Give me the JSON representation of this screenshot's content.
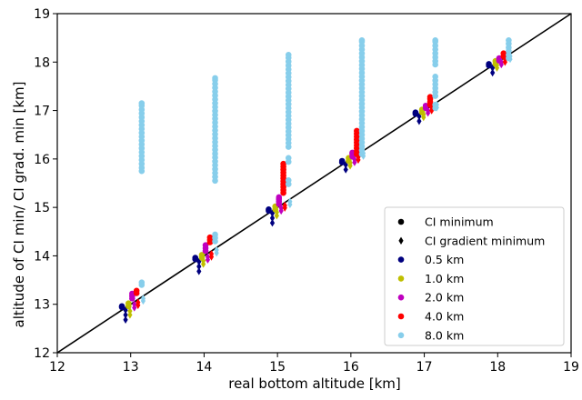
{
  "chart_data": {
    "type": "scatter",
    "xlabel": "real bottom altitude [km]",
    "ylabel": "altitude of CI min/ CI grad. min [km]",
    "xlim": [
      12,
      19
    ],
    "ylim": [
      12,
      19
    ],
    "xticks": [
      "12",
      "13",
      "14",
      "15",
      "16",
      "17",
      "18",
      "19"
    ],
    "yticks": [
      "12",
      "13",
      "14",
      "15",
      "16",
      "17",
      "18",
      "19"
    ],
    "grid": false,
    "legend_position": "lower-right",
    "reference_line": {
      "x": [
        12,
        19
      ],
      "y": [
        12,
        19
      ],
      "color": "#000000"
    },
    "markers": [
      {
        "name": "CI minimum",
        "shape": "circle",
        "color": "#000000"
      },
      {
        "name": "CI gradient minimum",
        "shape": "diamond",
        "color": "#000000"
      }
    ],
    "series": [
      {
        "name": "0.5 km",
        "color": "#00007f",
        "offset": -0.12,
        "ci_min": [
          {
            "x": 12.88,
            "y": [
              12.94,
              12.96
            ]
          },
          {
            "x": 13.88,
            "y": [
              13.93,
              13.96
            ]
          },
          {
            "x": 14.88,
            "y": [
              14.93,
              14.96
            ]
          },
          {
            "x": 15.88,
            "y": [
              15.93,
              15.96
            ]
          },
          {
            "x": 16.88,
            "y": [
              16.93,
              16.96
            ]
          },
          {
            "x": 17.88,
            "y": [
              17.93,
              17.96
            ]
          }
        ],
        "ci_grad_min": [
          {
            "x": 12.93,
            "y": [
              12.68,
              12.78,
              12.88
            ]
          },
          {
            "x": 13.93,
            "y": [
              13.68,
              13.78,
              13.88
            ]
          },
          {
            "x": 14.93,
            "y": [
              14.68,
              14.78,
              14.88
            ]
          },
          {
            "x": 15.93,
            "y": [
              15.78,
              15.88
            ]
          },
          {
            "x": 16.93,
            "y": [
              16.78,
              16.88
            ]
          },
          {
            "x": 17.93,
            "y": [
              17.78,
              17.88
            ]
          }
        ]
      },
      {
        "name": "1.0 km",
        "color": "#bfbf00",
        "offset": -0.03,
        "ci_min": [
          {
            "x": 12.97,
            "y": [
              12.96,
              13.02
            ]
          },
          {
            "x": 13.97,
            "y": [
              13.96,
              14.02
            ]
          },
          {
            "x": 14.97,
            "y": [
              14.96,
              15.02
            ]
          },
          {
            "x": 15.97,
            "y": [
              15.96,
              16.02
            ]
          },
          {
            "x": 16.97,
            "y": [
              16.96,
              17.02
            ]
          },
          {
            "x": 17.97,
            "y": [
              17.96,
              18.02
            ]
          }
        ],
        "ci_grad_min": [
          {
            "x": 12.99,
            "y": [
              12.78,
              12.86
            ]
          },
          {
            "x": 13.99,
            "y": [
              13.83,
              13.9
            ]
          },
          {
            "x": 14.99,
            "y": [
              14.83,
              14.9
            ]
          },
          {
            "x": 15.99,
            "y": [
              15.86,
              15.92
            ]
          },
          {
            "x": 16.99,
            "y": [
              16.86,
              16.92
            ]
          },
          {
            "x": 17.99,
            "y": [
              17.88,
              17.94
            ]
          }
        ]
      },
      {
        "name": "2.0 km",
        "color": "#bf00bf",
        "offset": 0.0,
        "ci_min": [
          {
            "x": 13.02,
            "y": [
              13.12,
              13.17,
              13.22
            ]
          },
          {
            "x": 14.02,
            "y": [
              14.1,
              14.16,
              14.22
            ]
          },
          {
            "x": 15.02,
            "y": [
              15.07,
              15.12,
              15.17,
              15.21
            ]
          },
          {
            "x": 16.02,
            "y": [
              16.05,
              16.1,
              16.13
            ]
          },
          {
            "x": 17.02,
            "y": [
              17.05,
              17.1
            ]
          },
          {
            "x": 18.02,
            "y": [
              18.03,
              18.08
            ]
          }
        ],
        "ci_grad_min": [
          {
            "x": 13.05,
            "y": [
              12.93,
              13.0
            ]
          },
          {
            "x": 14.05,
            "y": [
              13.92,
              13.98
            ]
          },
          {
            "x": 15.05,
            "y": [
              14.93,
              14.99
            ]
          },
          {
            "x": 16.05,
            "y": [
              15.93,
              15.99
            ]
          },
          {
            "x": 17.05,
            "y": [
              16.95,
              17.0
            ]
          },
          {
            "x": 18.05,
            "y": [
              17.95,
              18.0
            ]
          }
        ]
      },
      {
        "name": "4.0 km",
        "color": "#ff0000",
        "offset": 0.08,
        "ci_min": [
          {
            "x": 13.08,
            "y": [
              13.23,
              13.28
            ]
          },
          {
            "x": 14.08,
            "y": [
              14.28,
              14.33,
              14.38
            ]
          },
          {
            "x": 15.08,
            "y": [
              15.3,
              15.36,
              15.42,
              15.48,
              15.54,
              15.6,
              15.66,
              15.72,
              15.78,
              15.84,
              15.9
            ]
          },
          {
            "x": 16.08,
            "y": [
              16.1,
              16.16,
              16.22,
              16.28,
              16.34,
              16.4,
              16.46,
              16.52,
              16.58
            ]
          },
          {
            "x": 17.08,
            "y": [
              17.12,
              17.18,
              17.24,
              17.28
            ]
          },
          {
            "x": 18.08,
            "y": [
              18.12,
              18.18
            ]
          }
        ],
        "ci_grad_min": [
          {
            "x": 13.1,
            "y": [
              12.98,
              13.04
            ]
          },
          {
            "x": 14.1,
            "y": [
              13.98,
              14.04
            ]
          },
          {
            "x": 15.1,
            "y": [
              14.99,
              15.04
            ]
          },
          {
            "x": 16.1,
            "y": [
              15.98,
              16.04
            ]
          },
          {
            "x": 17.1,
            "y": [
              17.0,
              17.06
            ]
          },
          {
            "x": 18.1,
            "y": [
              18.0,
              18.06
            ]
          }
        ]
      },
      {
        "name": "8.0 km",
        "color": "#87ceeb",
        "offset": 0.15,
        "ci_min": [
          {
            "x": 13.15,
            "y": [
              13.4,
              13.45,
              15.75,
              15.82,
              15.9,
              15.98,
              16.06,
              16.14,
              16.22,
              16.3,
              16.38,
              16.46,
              16.54,
              16.62,
              16.7,
              16.78,
              16.86,
              16.94,
              17.02,
              17.1,
              17.15
            ]
          },
          {
            "x": 14.15,
            "y": [
              14.3,
              14.37,
              14.44,
              15.55,
              15.63,
              15.71,
              15.79,
              15.87,
              15.95,
              16.03,
              16.11,
              16.19,
              16.27,
              16.35,
              16.43,
              16.51,
              16.59,
              16.67,
              16.75,
              16.83,
              16.91,
              16.99,
              17.07,
              17.15,
              17.23,
              17.31,
              17.39,
              17.47,
              17.55,
              17.63,
              17.67
            ]
          },
          {
            "x": 15.15,
            "y": [
              15.48,
              15.56,
              15.94,
              16.02,
              16.25,
              16.33,
              16.41,
              16.49,
              16.57,
              16.65,
              16.73,
              16.81,
              16.89,
              16.97,
              17.05,
              17.13,
              17.21,
              17.29,
              17.37,
              17.45,
              17.53,
              17.61,
              17.69,
              17.77,
              17.85,
              17.93,
              18.01,
              18.09,
              18.15
            ]
          },
          {
            "x": 16.15,
            "y": [
              16.1,
              16.18,
              16.26,
              16.34,
              16.42,
              16.5,
              16.58,
              16.66,
              16.74,
              16.82,
              16.9,
              16.98,
              17.06,
              17.14,
              17.22,
              17.3,
              17.38,
              17.46,
              17.54,
              17.62,
              17.7,
              17.78,
              17.86,
              17.94,
              18.02,
              18.1,
              18.18,
              18.26,
              18.34,
              18.42,
              18.45
            ]
          },
          {
            "x": 17.15,
            "y": [
              17.05,
              17.12,
              17.3,
              17.38,
              17.46,
              17.54,
              17.62,
              17.7,
              17.95,
              18.02,
              18.1,
              18.18,
              18.26,
              18.34,
              18.42,
              18.45
            ]
          },
          {
            "x": 18.15,
            "y": [
              18.08,
              18.15,
              18.23,
              18.3,
              18.38,
              18.45
            ]
          }
        ],
        "ci_grad_min": [
          {
            "x": 13.17,
            "y": [
              13.07,
              13.12
            ]
          },
          {
            "x": 14.17,
            "y": [
              14.06,
              14.12
            ]
          },
          {
            "x": 15.17,
            "y": [
              15.06,
              15.12
            ]
          },
          {
            "x": 16.17,
            "y": [
              16.06,
              16.12
            ]
          },
          {
            "x": 17.17,
            "y": [
              17.06,
              17.12
            ]
          },
          {
            "x": 18.17,
            "y": [
              18.06,
              18.12
            ]
          }
        ]
      }
    ]
  }
}
